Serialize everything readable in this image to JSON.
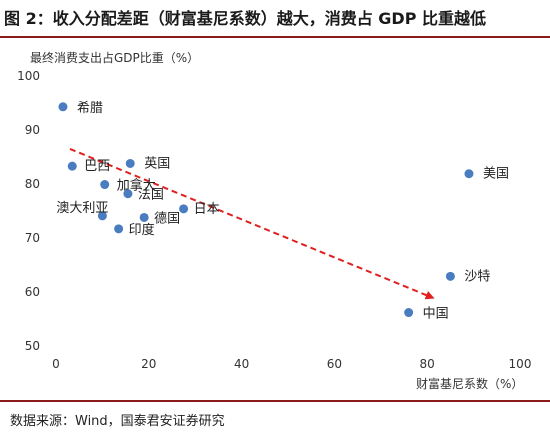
{
  "figure": {
    "title": "图 2：收入分配差距（财富基尼系数）越大，消费占 GDP 比重越低",
    "source": "数据来源：Wind，国泰君安证券研究"
  },
  "chart_data": {
    "type": "scatter",
    "title": "图 2：收入分配差距（财富基尼系数）越大，消费占 GDP 比重越低",
    "xlabel": "财富基尼系数（%）",
    "ylabel": "最终消费支出占GDP比重（%）",
    "xlim": [
      0,
      100
    ],
    "ylim": [
      50,
      100
    ],
    "xticks": [
      0,
      20,
      40,
      60,
      80,
      100
    ],
    "yticks": [
      50,
      60,
      70,
      80,
      90,
      100
    ],
    "grid": false,
    "point_color": "#4a7cc0",
    "trend_color": "#e02020",
    "points": [
      {
        "label": "希腊",
        "x": 1.5,
        "y": 94.3
      },
      {
        "label": "巴西",
        "x": 3.5,
        "y": 83.3
      },
      {
        "label": "英国",
        "x": 16,
        "y": 83.8
      },
      {
        "label": "加拿大",
        "x": 10.5,
        "y": 79.9
      },
      {
        "label": "法国",
        "x": 15.5,
        "y": 78.2
      },
      {
        "label": "日本",
        "x": 27.5,
        "y": 75.4
      },
      {
        "label": "澳大利亚",
        "x": 10,
        "y": 74.1
      },
      {
        "label": "德国",
        "x": 19,
        "y": 73.8
      },
      {
        "label": "印度",
        "x": 13.5,
        "y": 71.7
      },
      {
        "label": "美国",
        "x": 89,
        "y": 81.9
      },
      {
        "label": "沙特",
        "x": 85,
        "y": 62.9
      },
      {
        "label": "中国",
        "x": 76,
        "y": 56.2
      }
    ],
    "trend": {
      "x": [
        3,
        81
      ],
      "y": [
        86.5,
        59
      ]
    }
  }
}
